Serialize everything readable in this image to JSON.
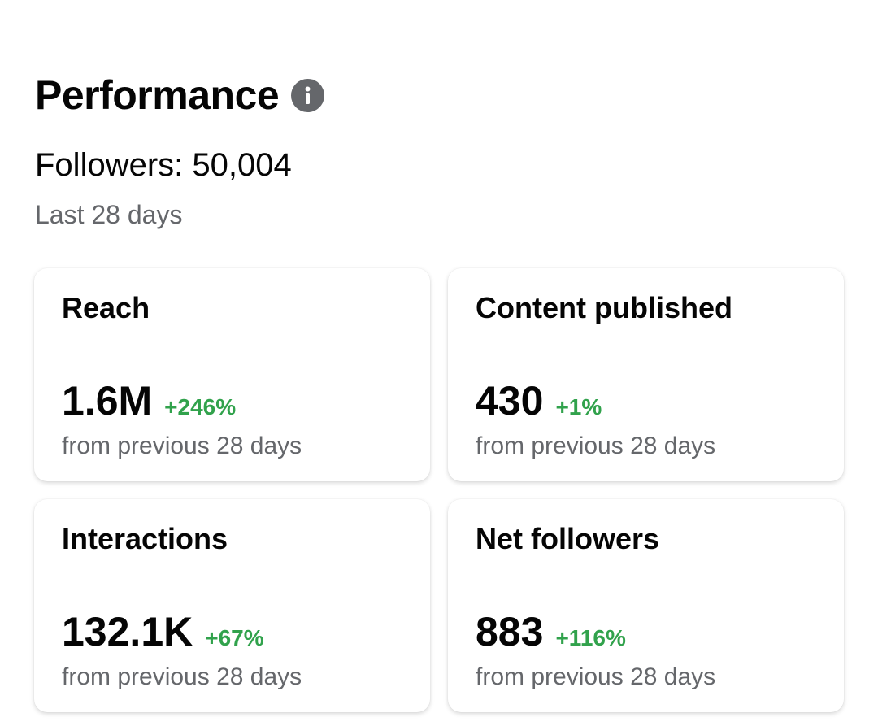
{
  "header": {
    "title": "Performance",
    "info_icon": "info-icon"
  },
  "summary": {
    "followers": "Followers: 50,004",
    "period": "Last 28 days"
  },
  "colors": {
    "positive": "#31a24c",
    "secondary_text": "#65676b",
    "icon_bg": "#65676b"
  },
  "cards": [
    {
      "title": "Reach",
      "value": "1.6M",
      "change": "+246%",
      "caption": "from previous 28 days"
    },
    {
      "title": "Content published",
      "value": "430",
      "change": "+1%",
      "caption": "from previous 28 days"
    },
    {
      "title": "Interactions",
      "value": "132.1K",
      "change": "+67%",
      "caption": "from previous 28 days"
    },
    {
      "title": "Net followers",
      "value": "883",
      "change": "+116%",
      "caption": "from previous 28 days"
    }
  ]
}
